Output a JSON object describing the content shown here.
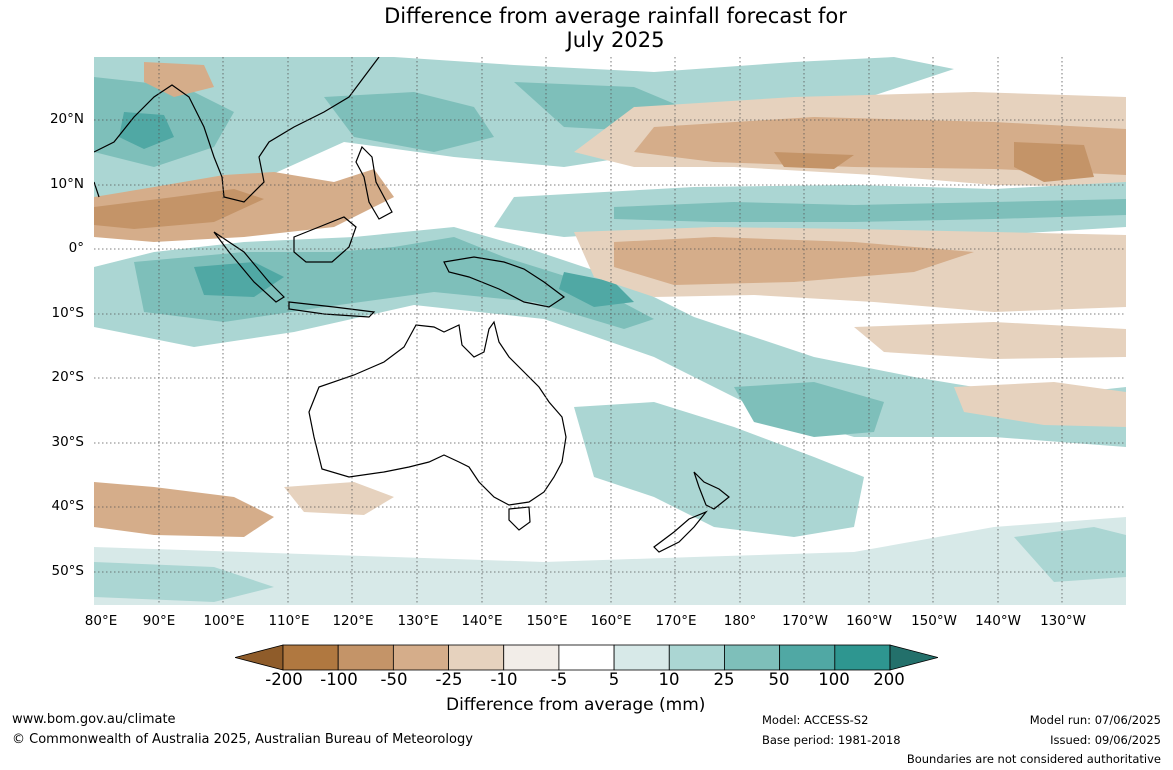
{
  "title_line1": "Difference from average rainfall forecast for",
  "title_line2": "July 2025",
  "lat_labels": [
    "20°N",
    "10°N",
    "0°",
    "10°S",
    "20°S",
    "30°S",
    "40°S",
    "50°S"
  ],
  "lon_labels": [
    "80°E",
    "90°E",
    "100°E",
    "110°E",
    "120°E",
    "130°E",
    "140°E",
    "150°E",
    "160°E",
    "170°E",
    "180°",
    "170°W",
    "160°W",
    "150°W",
    "140°W",
    "130°W"
  ],
  "colorbar": {
    "labels": [
      "-200",
      "-100",
      "-50",
      "-25",
      "-10",
      "-5",
      "5",
      "10",
      "25",
      "50",
      "100",
      "200"
    ],
    "colors": [
      "#8f5c2a",
      "#b07840",
      "#c49468",
      "#d5ad8a",
      "#e6d2be",
      "#f2ede8",
      "#ffffff",
      "#d7e9e8",
      "#abd6d3",
      "#7ebfba",
      "#50a8a4",
      "#2e9690",
      "#23706b"
    ],
    "title": "Difference from average (mm)"
  },
  "footer": {
    "site": "www.bom.gov.au/climate",
    "copyright": "© Commonwealth of Australia 2025, Australian Bureau of Meteorology",
    "model": "Model: ACCESS-S2",
    "base_period": "Base period: 1981-2018",
    "model_run": "Model run: 07/06/2025",
    "issued": "Issued: 09/06/2025",
    "boundaries": "Boundaries are not considered authoritative"
  }
}
